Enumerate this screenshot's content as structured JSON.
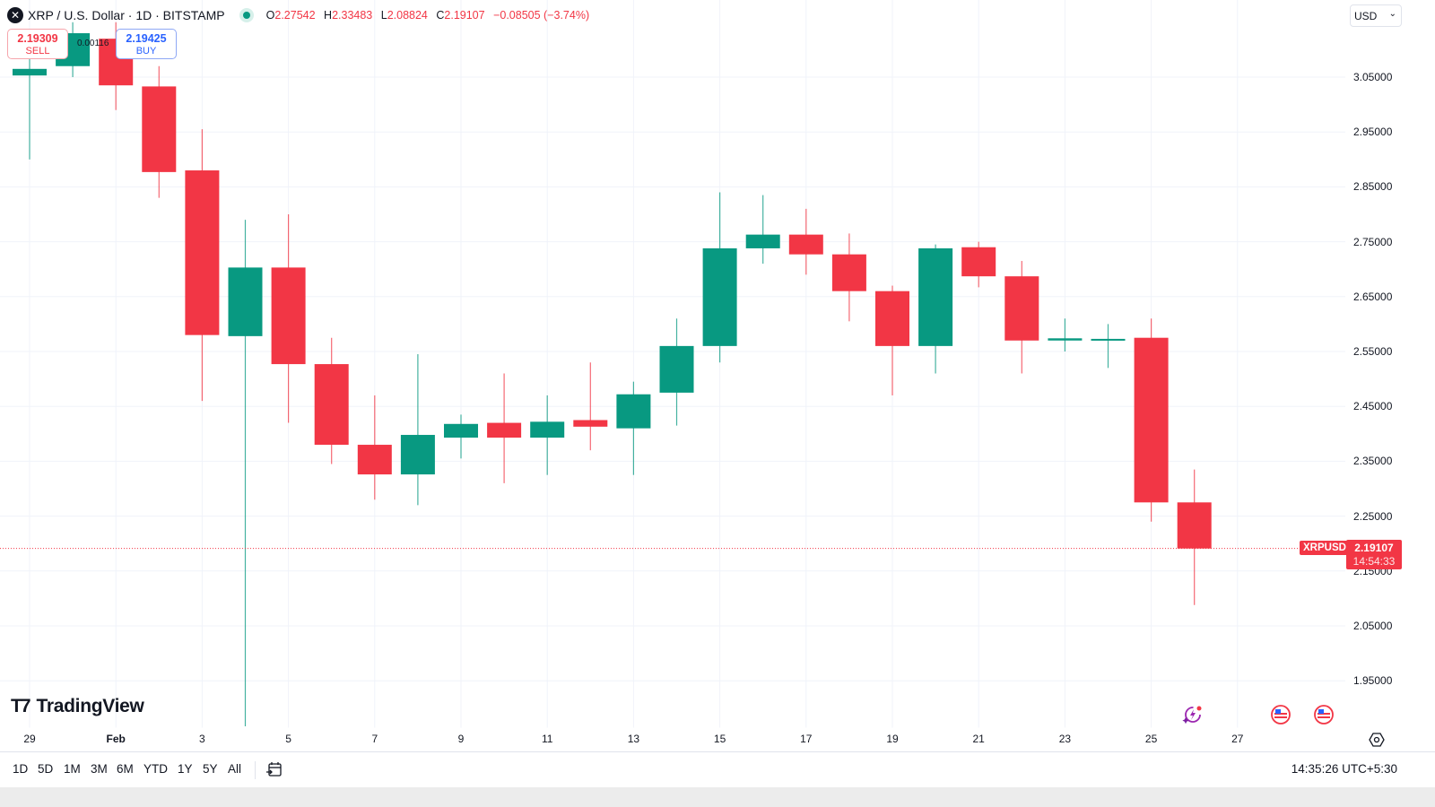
{
  "header": {
    "logo": "✕",
    "title": "XRP / U.S. Dollar · 1D · BITSTAMP",
    "ohlc": {
      "o_label": "O",
      "o": "2.27542",
      "h_label": "H",
      "h": "2.33483",
      "l_label": "L",
      "l": "2.08824",
      "c_label": "C",
      "c": "2.19107",
      "change": "−0.08505 (−3.74%)"
    }
  },
  "trade": {
    "sell_price": "2.19309",
    "sell_label": "SELL",
    "buy_price": "2.19425",
    "buy_label": "BUY",
    "spread": "0.00116"
  },
  "currency_select": {
    "value": "USD"
  },
  "last_price": {
    "symbol": "XRPUSD",
    "price": "2.19107",
    "countdown": "14:54:33"
  },
  "branding": {
    "name": "TradingView"
  },
  "bottom_bar": {
    "ranges": [
      "1D",
      "5D",
      "1M",
      "3M",
      "6M",
      "YTD",
      "1Y",
      "5Y",
      "All"
    ],
    "clock": "14:35:26 UTC+5:30"
  },
  "colors": {
    "up": "#089981",
    "down": "#f23645",
    "grid": "#f0f3fa",
    "text": "#131722"
  },
  "chart_data": {
    "type": "candlestick",
    "title": "XRP / U.S. Dollar · 1D · BITSTAMP",
    "xlabel": "",
    "ylabel": "USD",
    "ylim": [
      1.77,
      3.18
    ],
    "grid": true,
    "y_ticks": [
      "3.05000",
      "2.95000",
      "2.85000",
      "2.75000",
      "2.65000",
      "2.55000",
      "2.45000",
      "2.35000",
      "2.25000",
      "2.15000",
      "2.05000",
      "1.95000"
    ],
    "x_ticks": [
      "29",
      "Feb",
      "3",
      "5",
      "7",
      "9",
      "11",
      "13",
      "15",
      "17",
      "19",
      "21",
      "23",
      "25",
      "27"
    ],
    "categories": [
      "Jan 29",
      "Jan 30",
      "Jan 31",
      "Feb 1",
      "Feb 2",
      "Feb 3",
      "Feb 4",
      "Feb 5",
      "Feb 6",
      "Feb 7",
      "Feb 8",
      "Feb 9",
      "Feb 10",
      "Feb 11",
      "Feb 12",
      "Feb 13",
      "Feb 14",
      "Feb 15",
      "Feb 16",
      "Feb 17",
      "Feb 18",
      "Feb 19",
      "Feb 20",
      "Feb 21",
      "Feb 22",
      "Feb 23",
      "Feb 24",
      "Feb 25"
    ],
    "open": [
      3.053,
      3.07,
      3.12,
      3.033,
      2.88,
      2.578,
      2.703,
      2.527,
      2.38,
      2.326,
      2.393,
      2.42,
      2.393,
      2.425,
      2.41,
      2.475,
      2.56,
      2.738,
      2.763,
      2.727,
      2.66,
      2.56,
      2.74,
      2.687,
      2.57,
      2.573,
      2.575,
      2.275
    ],
    "high": [
      3.1,
      3.15,
      3.15,
      3.07,
      2.955,
      2.79,
      2.8,
      2.575,
      2.47,
      2.545,
      2.435,
      2.51,
      2.47,
      2.53,
      2.495,
      2.61,
      2.84,
      2.835,
      2.81,
      2.765,
      2.67,
      2.745,
      2.75,
      2.715,
      2.61,
      2.6,
      2.61,
      2.335
    ],
    "low": [
      2.9,
      3.05,
      2.99,
      2.83,
      2.46,
      1.77,
      2.42,
      2.345,
      2.28,
      2.27,
      2.355,
      2.31,
      2.325,
      2.37,
      2.325,
      2.415,
      2.53,
      2.71,
      2.69,
      2.605,
      2.47,
      2.51,
      2.667,
      2.51,
      2.55,
      2.52,
      2.24,
      2.088
    ],
    "close": [
      3.065,
      3.13,
      3.035,
      2.877,
      2.58,
      2.703,
      2.527,
      2.38,
      2.326,
      2.398,
      2.418,
      2.393,
      2.422,
      2.413,
      2.472,
      2.56,
      2.738,
      2.763,
      2.727,
      2.66,
      2.56,
      2.738,
      2.687,
      2.57,
      2.574,
      2.573,
      2.275,
      2.191
    ],
    "last_price_line": 2.19107
  }
}
